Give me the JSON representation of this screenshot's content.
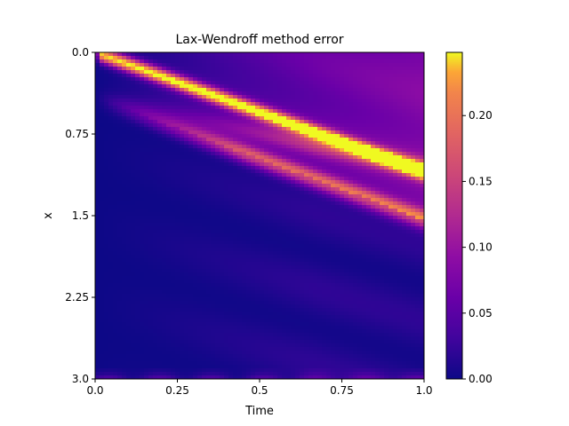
{
  "chart_data": {
    "type": "heatmap",
    "title": "Lax-Wendroff method error",
    "xlabel": "Time",
    "ylabel": "x",
    "x_range": [
      0.0,
      1.0
    ],
    "y_range": [
      0.0,
      3.0
    ],
    "y_inverted": true,
    "x_ticks": [
      0.0,
      0.25,
      0.5,
      0.75,
      1.0
    ],
    "x_tick_labels": [
      "0.0",
      "0.25",
      "0.5",
      "0.75",
      "1.0"
    ],
    "y_ticks": [
      0.0,
      0.75,
      1.5,
      2.25,
      3.0
    ],
    "y_tick_labels": [
      "0.0",
      "0.75",
      "1.5",
      "2.25",
      "3.0"
    ],
    "colormap": "plasma",
    "colorbar": {
      "range": [
        0.0,
        0.248
      ],
      "ticks": [
        0.0,
        0.05,
        0.1,
        0.15,
        0.2
      ],
      "tick_labels": [
        "0.00",
        "0.05",
        "0.10",
        "0.15",
        "0.20"
      ]
    },
    "grid": false
  }
}
